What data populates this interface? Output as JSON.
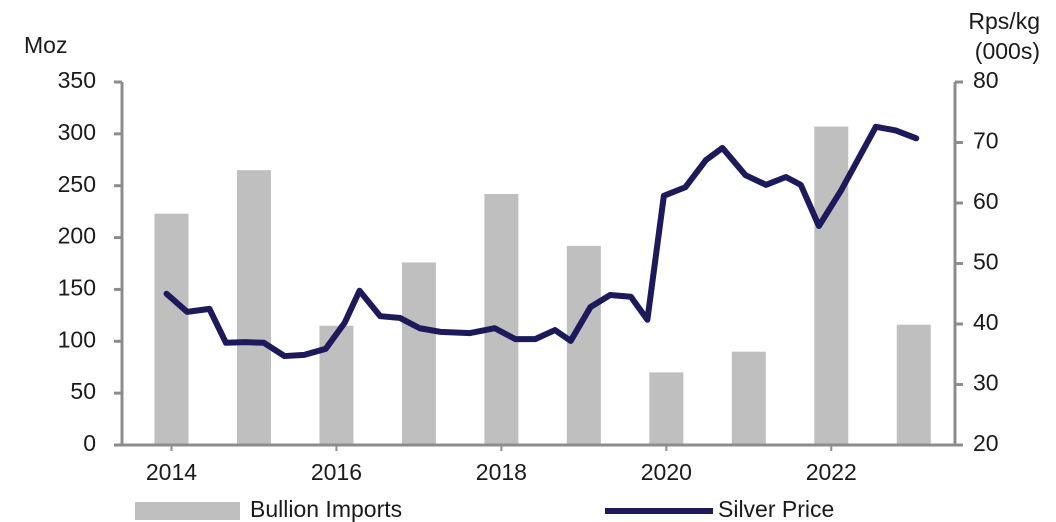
{
  "chart_data": {
    "type": "bar",
    "ylabel": "Moz",
    "y2label": [
      "Rps/kg",
      "(000s)"
    ],
    "xlim": [
      2013.4,
      2023.5
    ],
    "xticks": [
      2014,
      2016,
      2018,
      2020,
      2022
    ],
    "ylim": [
      0,
      350
    ],
    "yticks": [
      0,
      50,
      100,
      150,
      200,
      250,
      300,
      350
    ],
    "y2lim": [
      20,
      80
    ],
    "y2ticks": [
      20,
      30,
      40,
      50,
      60,
      70,
      80
    ],
    "series": [
      {
        "name": "Bullion Imports",
        "type": "bar",
        "color": "#bfbfbf",
        "x": [
          2014,
          2015,
          2016,
          2017,
          2018,
          2019,
          2020,
          2021,
          2022,
          2023
        ],
        "values": [
          223,
          265,
          115,
          176,
          242,
          192,
          70,
          90,
          307,
          116
        ]
      },
      {
        "name": "Silver Price",
        "type": "line",
        "axis": "y2",
        "color": "#1c1a5a",
        "x": [
          2013.94,
          2014.19,
          2014.46,
          2014.66,
          2014.89,
          2015.12,
          2015.37,
          2015.61,
          2015.87,
          2016.1,
          2016.28,
          2016.53,
          2016.77,
          2017.01,
          2017.26,
          2017.62,
          2017.92,
          2018.17,
          2018.41,
          2018.65,
          2018.84,
          2019.08,
          2019.32,
          2019.57,
          2019.77,
          2019.97,
          2020.23,
          2020.48,
          2020.68,
          2020.96,
          2021.21,
          2021.45,
          2021.63,
          2021.85,
          2022.12,
          2022.54,
          2022.78,
          2023.03
        ],
        "values": [
          45,
          42,
          42.5,
          36.9,
          37,
          36.9,
          34.7,
          34.9,
          35.9,
          40.2,
          45.5,
          41.3,
          41,
          39.3,
          38.7,
          38.5,
          39.3,
          37.5,
          37.5,
          39,
          37.2,
          42.8,
          44.8,
          44.5,
          40.7,
          61.2,
          62.6,
          67.1,
          69.1,
          64.6,
          63,
          64.3,
          63,
          56.2,
          62.1,
          72.6,
          72,
          70.7
        ]
      }
    ]
  }
}
